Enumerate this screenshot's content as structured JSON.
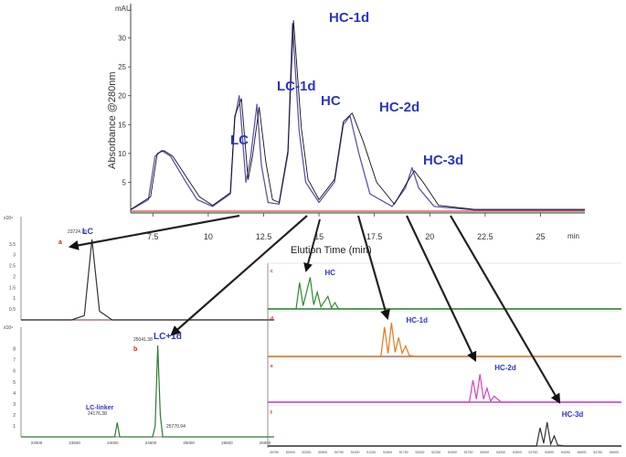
{
  "chart_data": [
    {
      "type": "line",
      "id": "main",
      "ylabel": "Absorbance @280nm",
      "yunit": "mAU",
      "xlabel": "Elution Time (min)",
      "xunit": "min",
      "xlim": [
        6.5,
        27
      ],
      "ylim": [
        0,
        35
      ],
      "xticks": [
        "7.5",
        "10",
        "12.5",
        "15",
        "17.5",
        "20",
        "22.5",
        "25"
      ],
      "yticks": [
        "5",
        "10",
        "15",
        "20",
        "25",
        "30"
      ],
      "grid": false,
      "series": [
        {
          "color": "#5a55b0",
          "x": [
            6.5,
            7.3,
            7.6,
            7.9,
            8.3,
            9.0,
            9.5,
            10.2,
            11.0,
            11.2,
            11.4,
            11.7,
            11.9,
            12.2,
            12.4,
            12.7,
            13.2,
            13.6,
            13.8,
            14.1,
            14.4,
            15.0,
            15.7,
            16.1,
            16.4,
            16.8,
            17.3,
            18.3,
            18.9,
            19.2,
            19.5,
            20.2,
            22,
            27
          ],
          "y": [
            0.2,
            2,
            9.5,
            10.5,
            9.5,
            5,
            2,
            0.8,
            3,
            16,
            20,
            5,
            9,
            18.5,
            8,
            1.5,
            1.2,
            10,
            32.5,
            14,
            5,
            1.5,
            5,
            15,
            16.5,
            10,
            3,
            0.8,
            4,
            7.5,
            4,
            0.8,
            0.2,
            0.2
          ]
        },
        {
          "color": "#111111",
          "x": [
            6.5,
            7.4,
            7.7,
            8.0,
            8.4,
            9.0,
            9.6,
            10.2,
            11.0,
            11.2,
            11.5,
            11.8,
            12.0,
            12.3,
            12.6,
            12.9,
            13.2,
            13.6,
            13.85,
            14.2,
            14.5,
            15.0,
            15.7,
            16.1,
            16.5,
            17.0,
            17.6,
            18.4,
            18.9,
            19.3,
            19.7,
            20.4,
            22,
            27
          ],
          "y": [
            0.3,
            2.5,
            10,
            10.5,
            9.5,
            6,
            2.5,
            1,
            3.2,
            16.5,
            19.5,
            5.5,
            9.5,
            18,
            8.5,
            2,
            1.5,
            10.5,
            33,
            14.5,
            5.5,
            2,
            5.5,
            15.5,
            17,
            12,
            5,
            1.2,
            4.5,
            7,
            5,
            1,
            0.3,
            0.3
          ]
        }
      ],
      "annotations": [
        "LC",
        "LC-1d",
        "HC",
        "HC-1d",
        "HC-2d",
        "HC-3d"
      ]
    },
    {
      "type": "line",
      "id": "ms-lc",
      "yunit": "x10⁴",
      "yticks": [
        "0.5",
        "1",
        "1.5",
        "2",
        "2.5",
        "3",
        "3.5"
      ],
      "series": [
        {
          "name": "LC",
          "color": "#333333",
          "x": [
            0,
            0.2,
            0.25,
            0.28,
            0.31,
            0.36,
            0.5,
            1
          ],
          "y": [
            0,
            0,
            0.2,
            3.7,
            0.4,
            0,
            0,
            0
          ]
        }
      ],
      "label": "LC",
      "panel_letter": "a",
      "peak_label": "23724.78"
    },
    {
      "type": "line",
      "id": "ms-lc1d",
      "yunit": "x10⁴",
      "yticks": [
        "1",
        "2",
        "3",
        "4",
        "5",
        "6",
        "7",
        "8"
      ],
      "series": [
        {
          "name": "LC+1d",
          "color": "#2f7a32",
          "x": [
            0,
            0.35,
            0.37,
            0.38,
            0.39,
            0.42,
            0.52,
            0.53,
            0.54,
            0.55,
            0.56,
            0.58,
            1
          ],
          "y": [
            0,
            0,
            0,
            1.3,
            0,
            0,
            0,
            1,
            8.3,
            2,
            0,
            0,
            0
          ]
        }
      ],
      "label": "LC+1d",
      "sublabel": "LC-linker",
      "panel_letter": "b",
      "peak_labels": [
        "25041.38",
        "24176.38",
        "25770.94"
      ],
      "xticks": [
        "23000",
        "23500",
        "24000",
        "24500",
        "25000",
        "25500",
        "26000"
      ]
    },
    {
      "type": "line",
      "id": "ms-hc",
      "series": [
        {
          "name": "HC",
          "color": "#2d8a2d",
          "x": [
            0,
            0.06,
            0.08,
            0.09,
            0.1,
            0.12,
            0.13,
            0.14,
            0.15,
            0.17,
            0.18,
            0.19,
            0.2,
            1
          ],
          "y": [
            0,
            0,
            0,
            2.5,
            0.3,
            3,
            0.4,
            1.6,
            0.2,
            1.2,
            0.1,
            0.6,
            0,
            0
          ]
        },
        {
          "name": "HC-1d",
          "color": "#e07a20",
          "x": [
            0,
            0.3,
            0.32,
            0.33,
            0.34,
            0.35,
            0.36,
            0.37,
            0.38,
            0.39,
            0.4,
            0.42,
            1
          ],
          "y": [
            0,
            0,
            0,
            2.8,
            0.3,
            3.2,
            0.4,
            1.8,
            0.3,
            1,
            0.1,
            0,
            0
          ]
        },
        {
          "name": "HC-2d",
          "color": "#d63fc8",
          "x": [
            0,
            0.55,
            0.57,
            0.58,
            0.59,
            0.6,
            0.61,
            0.62,
            0.63,
            0.64,
            0.66,
            1
          ],
          "y": [
            0,
            0,
            0,
            2.2,
            0.3,
            2.8,
            0.3,
            1.4,
            0.1,
            0.6,
            0,
            0
          ]
        },
        {
          "name": "HC-3d",
          "color": "#333333",
          "x": [
            0,
            0.74,
            0.76,
            0.77,
            0.78,
            0.79,
            0.8,
            0.81,
            0.82,
            0.84,
            1
          ],
          "y": [
            0,
            0,
            0,
            2,
            0.3,
            2.6,
            0.2,
            1.1,
            0.1,
            0,
            0
          ]
        }
      ],
      "labels": [
        "HC",
        "HC-1d",
        "HC-2d",
        "HC-3d"
      ],
      "panel_letters": [
        "c",
        "d",
        "e",
        "f"
      ],
      "xticks": [
        "49750",
        "50000",
        "50250",
        "50500",
        "50750",
        "51000",
        "51250",
        "51500",
        "51750",
        "52000",
        "52250",
        "52500",
        "52750",
        "53000",
        "53250",
        "53500",
        "53750",
        "54000",
        "54250",
        "54500",
        "54750",
        "55000"
      ]
    }
  ],
  "colors": {
    "annotation": "#2b34c8",
    "trace_purple": "#5a55b0",
    "baseline_red": "#d24a4a",
    "baseline_green": "#4aa04a",
    "arrow": "#111111"
  }
}
